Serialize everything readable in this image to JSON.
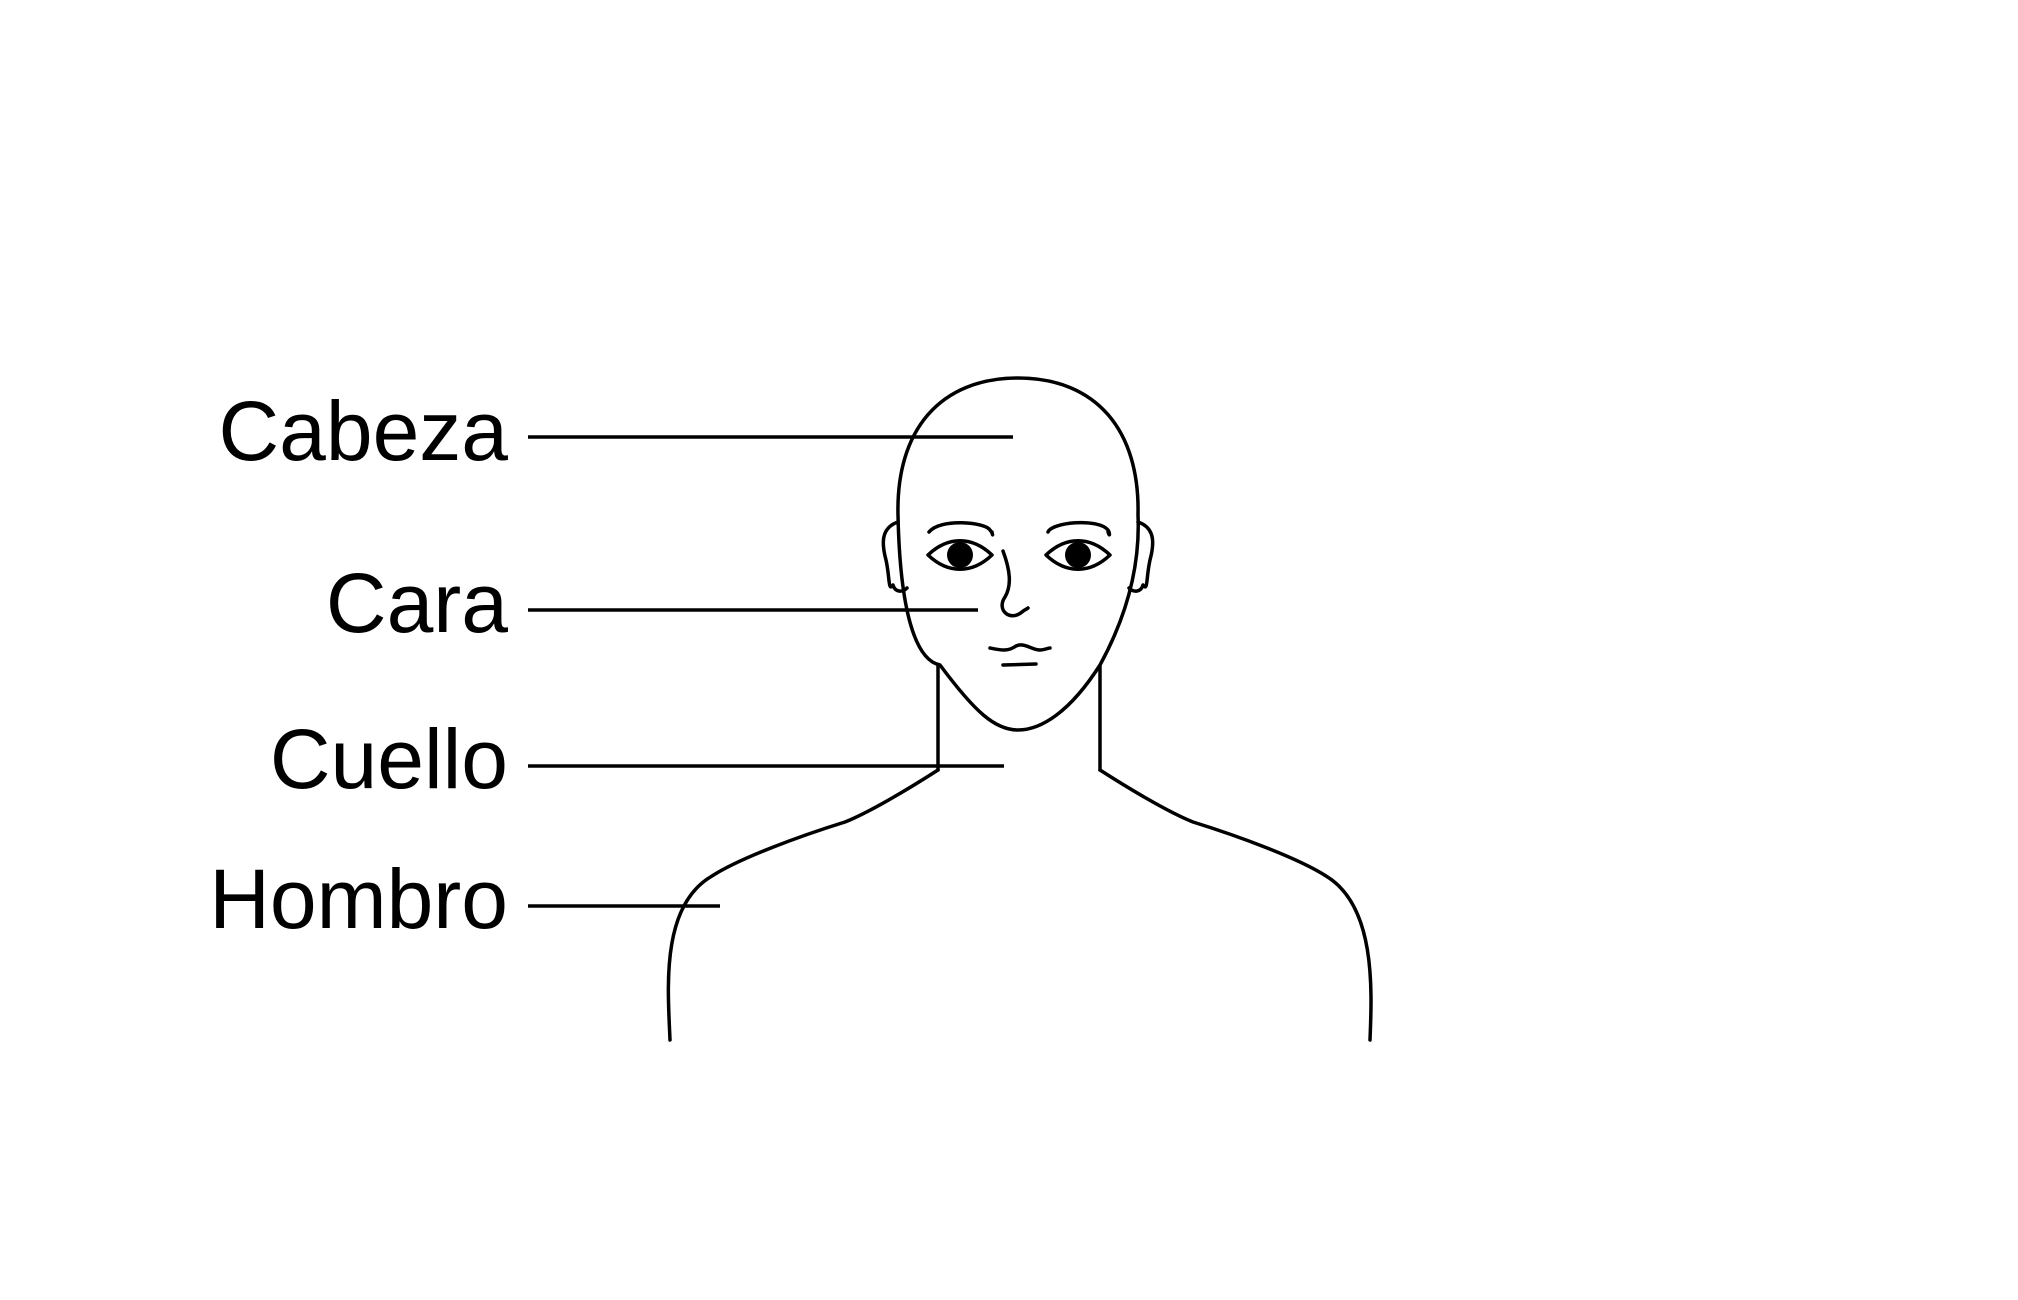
{
  "labels": {
    "head": "Cabeza",
    "face": "Cara",
    "neck": "Cuello",
    "shoulder": "Hombro"
  },
  "colors": {
    "line": "#000000",
    "background": "#ffffff"
  }
}
